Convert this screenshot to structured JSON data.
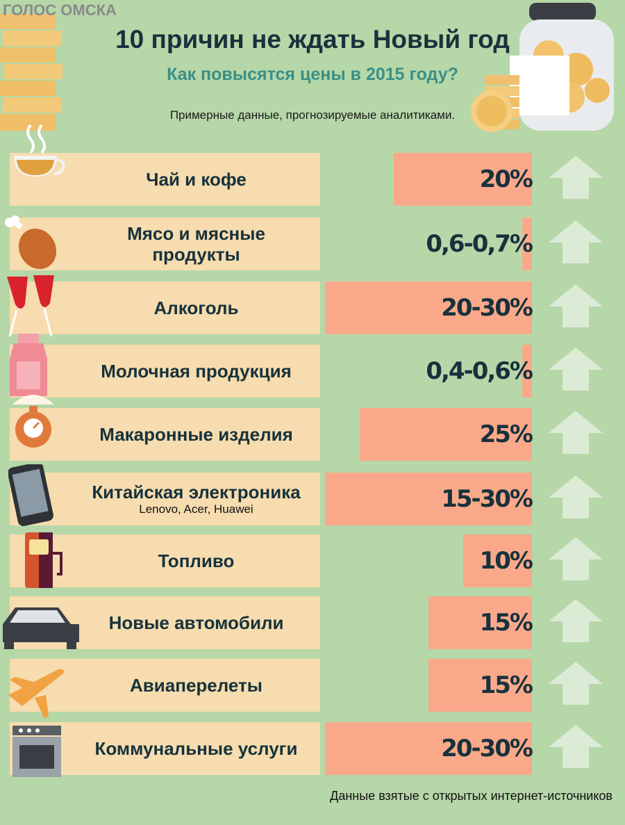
{
  "watermark": "ГОЛОС ОМСКА",
  "title": "10 причин не ждать Новый год",
  "subtitle": "Как повысятся цены в 2015 году?",
  "note": "Примерные данные, прогнозируемые аналитиками.",
  "source": "Данные взятые с открытых интернет-источников",
  "colors": {
    "background": "#b6d7a8",
    "label_box": "#f6dcae",
    "bar": "#f9a98a",
    "text": "#17323c",
    "subtitle": "#3a8f86",
    "arrow": "#dcebd5"
  },
  "chart_data": {
    "type": "bar",
    "orientation": "horizontal",
    "unit": "%",
    "categories": [
      "Чай и кофе",
      "Мясо и мясные продукты",
      "Алкоголь",
      "Молочная продукция",
      "Макаронные изделия",
      "Китайская электроника",
      "Топливо",
      "Новые автомобили",
      "Авиаперелеты",
      "Коммунальные услуги"
    ],
    "items": [
      {
        "label": "Чай и кофе",
        "sub": "",
        "value_label": "20%",
        "low": 20,
        "high": 20,
        "icon": "tea-cup-icon"
      },
      {
        "label": "Мясо и мясные продукты",
        "sub": "",
        "value_label": "0,6-0,7%",
        "low": 0.6,
        "high": 0.7,
        "icon": "meat-drumstick-icon"
      },
      {
        "label": "Алкоголь",
        "sub": "",
        "value_label": "20-30%",
        "low": 20,
        "high": 30,
        "icon": "wine-glasses-icon"
      },
      {
        "label": "Молочная продукция",
        "sub": "",
        "value_label": "0,4-0,6%",
        "low": 0.4,
        "high": 0.6,
        "icon": "milk-bottle-icon"
      },
      {
        "label": "Макаронные изделия",
        "sub": "",
        "value_label": "25%",
        "low": 25,
        "high": 25,
        "icon": "kitchen-scale-icon"
      },
      {
        "label": "Китайская электроника",
        "sub": "Lenovo, Acer, Huawei",
        "value_label": "15-30%",
        "low": 15,
        "high": 30,
        "icon": "smartphone-icon"
      },
      {
        "label": "Топливо",
        "sub": "",
        "value_label": "10%",
        "low": 10,
        "high": 10,
        "icon": "fuel-pump-icon"
      },
      {
        "label": "Новые автомобили",
        "sub": "",
        "value_label": "15%",
        "low": 15,
        "high": 15,
        "icon": "car-icon"
      },
      {
        "label": "Авиаперелеты",
        "sub": "",
        "value_label": "15%",
        "low": 15,
        "high": 15,
        "icon": "airplane-icon"
      },
      {
        "label": "Коммунальные услуги",
        "sub": "",
        "value_label": "20-30%",
        "low": 20,
        "high": 30,
        "icon": "stove-icon"
      }
    ]
  }
}
